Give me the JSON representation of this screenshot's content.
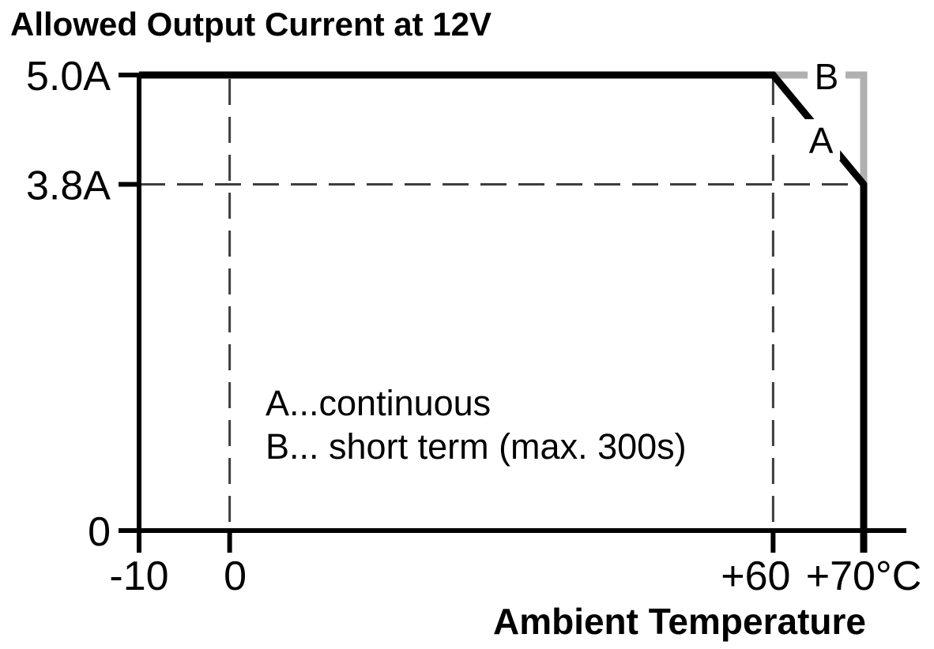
{
  "page": {
    "background": "#ffffff"
  },
  "chart_data": {
    "type": "line",
    "title": "Allowed Output Current at 12V",
    "xlabel": "Ambient Temperature",
    "ylabel": "",
    "x_unit": "°C",
    "y_unit": "A",
    "xlim": [
      -10,
      70
    ],
    "ylim": [
      0,
      5.0
    ],
    "grid": false,
    "x_ticks": [
      {
        "value": -10,
        "label": "-10",
        "dx": 0
      },
      {
        "value": 0,
        "label": "0",
        "dx": 7
      },
      {
        "value": 60,
        "label": "+60",
        "dx": -22
      },
      {
        "value": 70,
        "label": "+70°C",
        "dx": 0
      }
    ],
    "y_ticks": [
      {
        "value": 5.0,
        "label": "5.0A"
      },
      {
        "value": 3.8,
        "label": "3.8A"
      },
      {
        "value": 0,
        "label": "0"
      }
    ],
    "series": [
      {
        "name": "A",
        "meaning": "continuous",
        "color": "#000000",
        "z": 2,
        "extends_below_axis": true,
        "points": [
          [
            -10,
            5.0
          ],
          [
            60,
            5.0
          ],
          [
            70,
            3.8
          ],
          [
            70,
            0
          ]
        ]
      },
      {
        "name": "B",
        "meaning": "short term (max. 300s)",
        "color": "#b0b0b0",
        "z": 1,
        "extends_below_axis": false,
        "points": [
          [
            60,
            5.0
          ],
          [
            70,
            5.0
          ],
          [
            70,
            3.8
          ]
        ]
      }
    ],
    "guides": [
      {
        "type": "v",
        "x": 0,
        "from": 0,
        "to": 5.0
      },
      {
        "type": "v",
        "x": 60,
        "from": 0,
        "to": 5.0
      },
      {
        "type": "h",
        "y": 3.8,
        "from": -10,
        "to": 70
      }
    ],
    "curve_labels": [
      {
        "text": "B",
        "x": 65.9,
        "y": 4.99
      },
      {
        "text": "A",
        "x": 65.3,
        "y": 4.29
      }
    ],
    "legend": {
      "position": "inside-lower-left",
      "lines": [
        "A...continuous",
        "B... short term (max. 300s)"
      ]
    },
    "colors": {
      "axis": "#000000",
      "guide": "#3d3d3d",
      "text": "#000000",
      "series_b_gray": "#b0b0b0",
      "background": "#ffffff"
    }
  }
}
